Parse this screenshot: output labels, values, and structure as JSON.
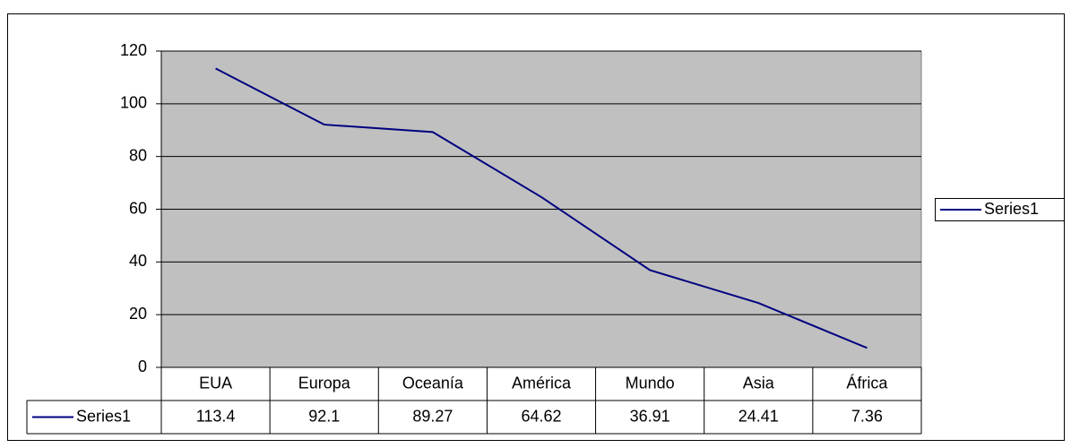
{
  "chart_data": {
    "type": "line",
    "categories": [
      "EUA",
      "Europa",
      "Oceanía",
      "América",
      "Mundo",
      "Asia",
      "África"
    ],
    "series": [
      {
        "name": "Series1",
        "color": "#000080",
        "values": [
          113.4,
          92.1,
          89.27,
          64.62,
          36.91,
          24.41,
          7.36
        ]
      }
    ],
    "ylim": [
      0,
      120
    ],
    "yticks": [
      0,
      20,
      40,
      60,
      80,
      100,
      120
    ],
    "grid": true,
    "legend": "right",
    "data_table": true
  }
}
